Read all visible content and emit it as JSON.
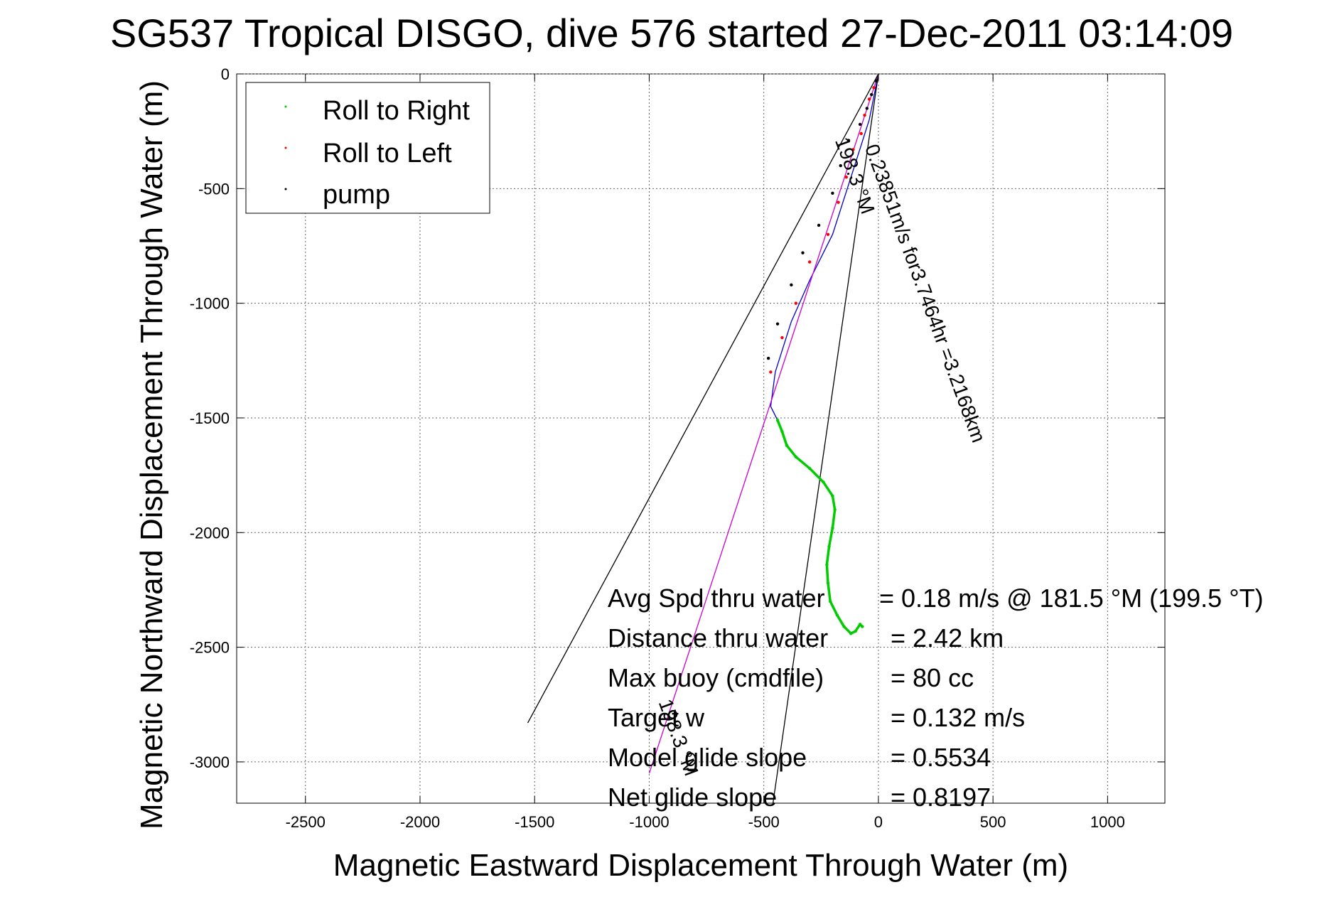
{
  "chart_data": {
    "type": "line",
    "title": "SG537 Tropical DISGO, dive 576 started 27-Dec-2011 03:14:09",
    "xlabel": "Magnetic Eastward Displacement Through Water (m)",
    "ylabel": "Magnetic Northward Displacement Through Water (m)",
    "xlim": [
      -2800,
      1250
    ],
    "ylim": [
      -3180,
      0
    ],
    "xticks": [
      -2500,
      -2000,
      -1500,
      -1000,
      -500,
      0,
      500,
      1000
    ],
    "yticks": [
      0,
      -500,
      -1000,
      -1500,
      -2000,
      -2500,
      -3000
    ],
    "grid": true,
    "legend_position": "top-left",
    "legend": [
      {
        "label": "Roll to Right",
        "color": "#00cc00"
      },
      {
        "label": "Roll to Left",
        "color": "#ff0000"
      },
      {
        "label": "pump",
        "color": "#000000"
      }
    ],
    "series": [
      {
        "name": "Roll to Right",
        "color": "#00cc00",
        "x": [
          -440,
          -420,
          -400,
          -360,
          -300,
          -240,
          -200,
          -190,
          -200,
          -215,
          -225,
          -220,
          -210,
          -180,
          -150,
          -120,
          -100,
          -80,
          -70
        ],
        "y": [
          -1510,
          -1560,
          -1620,
          -1670,
          -1720,
          -1780,
          -1840,
          -1900,
          -1980,
          -2060,
          -2140,
          -2220,
          -2300,
          -2360,
          -2410,
          -2440,
          -2430,
          -2400,
          -2410
        ]
      },
      {
        "name": "Roll to Left",
        "color": "#ff0000",
        "x": [
          -20,
          -40,
          -60,
          -75,
          -110,
          -140,
          -175,
          -220,
          -300,
          -360,
          -420,
          -470
        ],
        "y": [
          -60,
          -110,
          -180,
          -260,
          -330,
          -450,
          -560,
          -700,
          -820,
          -1000,
          -1150,
          -1300
        ]
      },
      {
        "name": "pump",
        "color": "#000000",
        "x": [
          -10,
          -30,
          -50,
          -80,
          -130,
          -165,
          -200,
          -260,
          -330,
          -380,
          -440,
          -480
        ],
        "y": [
          -30,
          -90,
          -150,
          -220,
          -290,
          -400,
          -520,
          -660,
          -780,
          -920,
          -1090,
          -1240
        ]
      }
    ],
    "lines": [
      {
        "name": "track",
        "color": "#0000cc",
        "x": [
          0,
          -40,
          -110,
          -200,
          -300,
          -380,
          -450,
          -470,
          -440
        ],
        "y": [
          0,
          -200,
          -420,
          -700,
          -900,
          -1080,
          -1300,
          -1450,
          -1510
        ]
      },
      {
        "name": "net displacement",
        "color": "#cc00cc",
        "x": [
          0,
          -1000
        ],
        "y": [
          0,
          -3050
        ]
      },
      {
        "name": "bound 1",
        "color": "#000000",
        "x": [
          0,
          -1530
        ],
        "y": [
          0,
          -2830
        ]
      },
      {
        "name": "bound 2",
        "color": "#000000",
        "x": [
          0,
          -460
        ],
        "y": [
          0,
          -3180
        ]
      }
    ],
    "annotations": [
      {
        "text": "0.23851m/s for3.7464hr =3.2168km",
        "x": -60,
        "y": -320,
        "rotation": 69.9
      },
      {
        "text": "198.3 °M",
        "x": -190,
        "y": -290,
        "rotation": 69.9
      },
      {
        "text": "198.3 °M",
        "x": -960,
        "y": -2740,
        "rotation": 69.9
      }
    ],
    "summary": [
      {
        "label": "Avg Spd thru water",
        "value": "=  0.18 m/s @ 181.5 °M (199.5 °T)"
      },
      {
        "label": "Distance thru water",
        "value": "=  2.42 km"
      },
      {
        "label": "Max buoy (cmdfile)",
        "value": "= 80 cc"
      },
      {
        "label": "Target w",
        "value": "= 0.132 m/s"
      },
      {
        "label": "Model glide slope",
        "value": "= 0.5534"
      },
      {
        "label": "Net glide slope",
        "value": "= 0.8197"
      }
    ]
  }
}
